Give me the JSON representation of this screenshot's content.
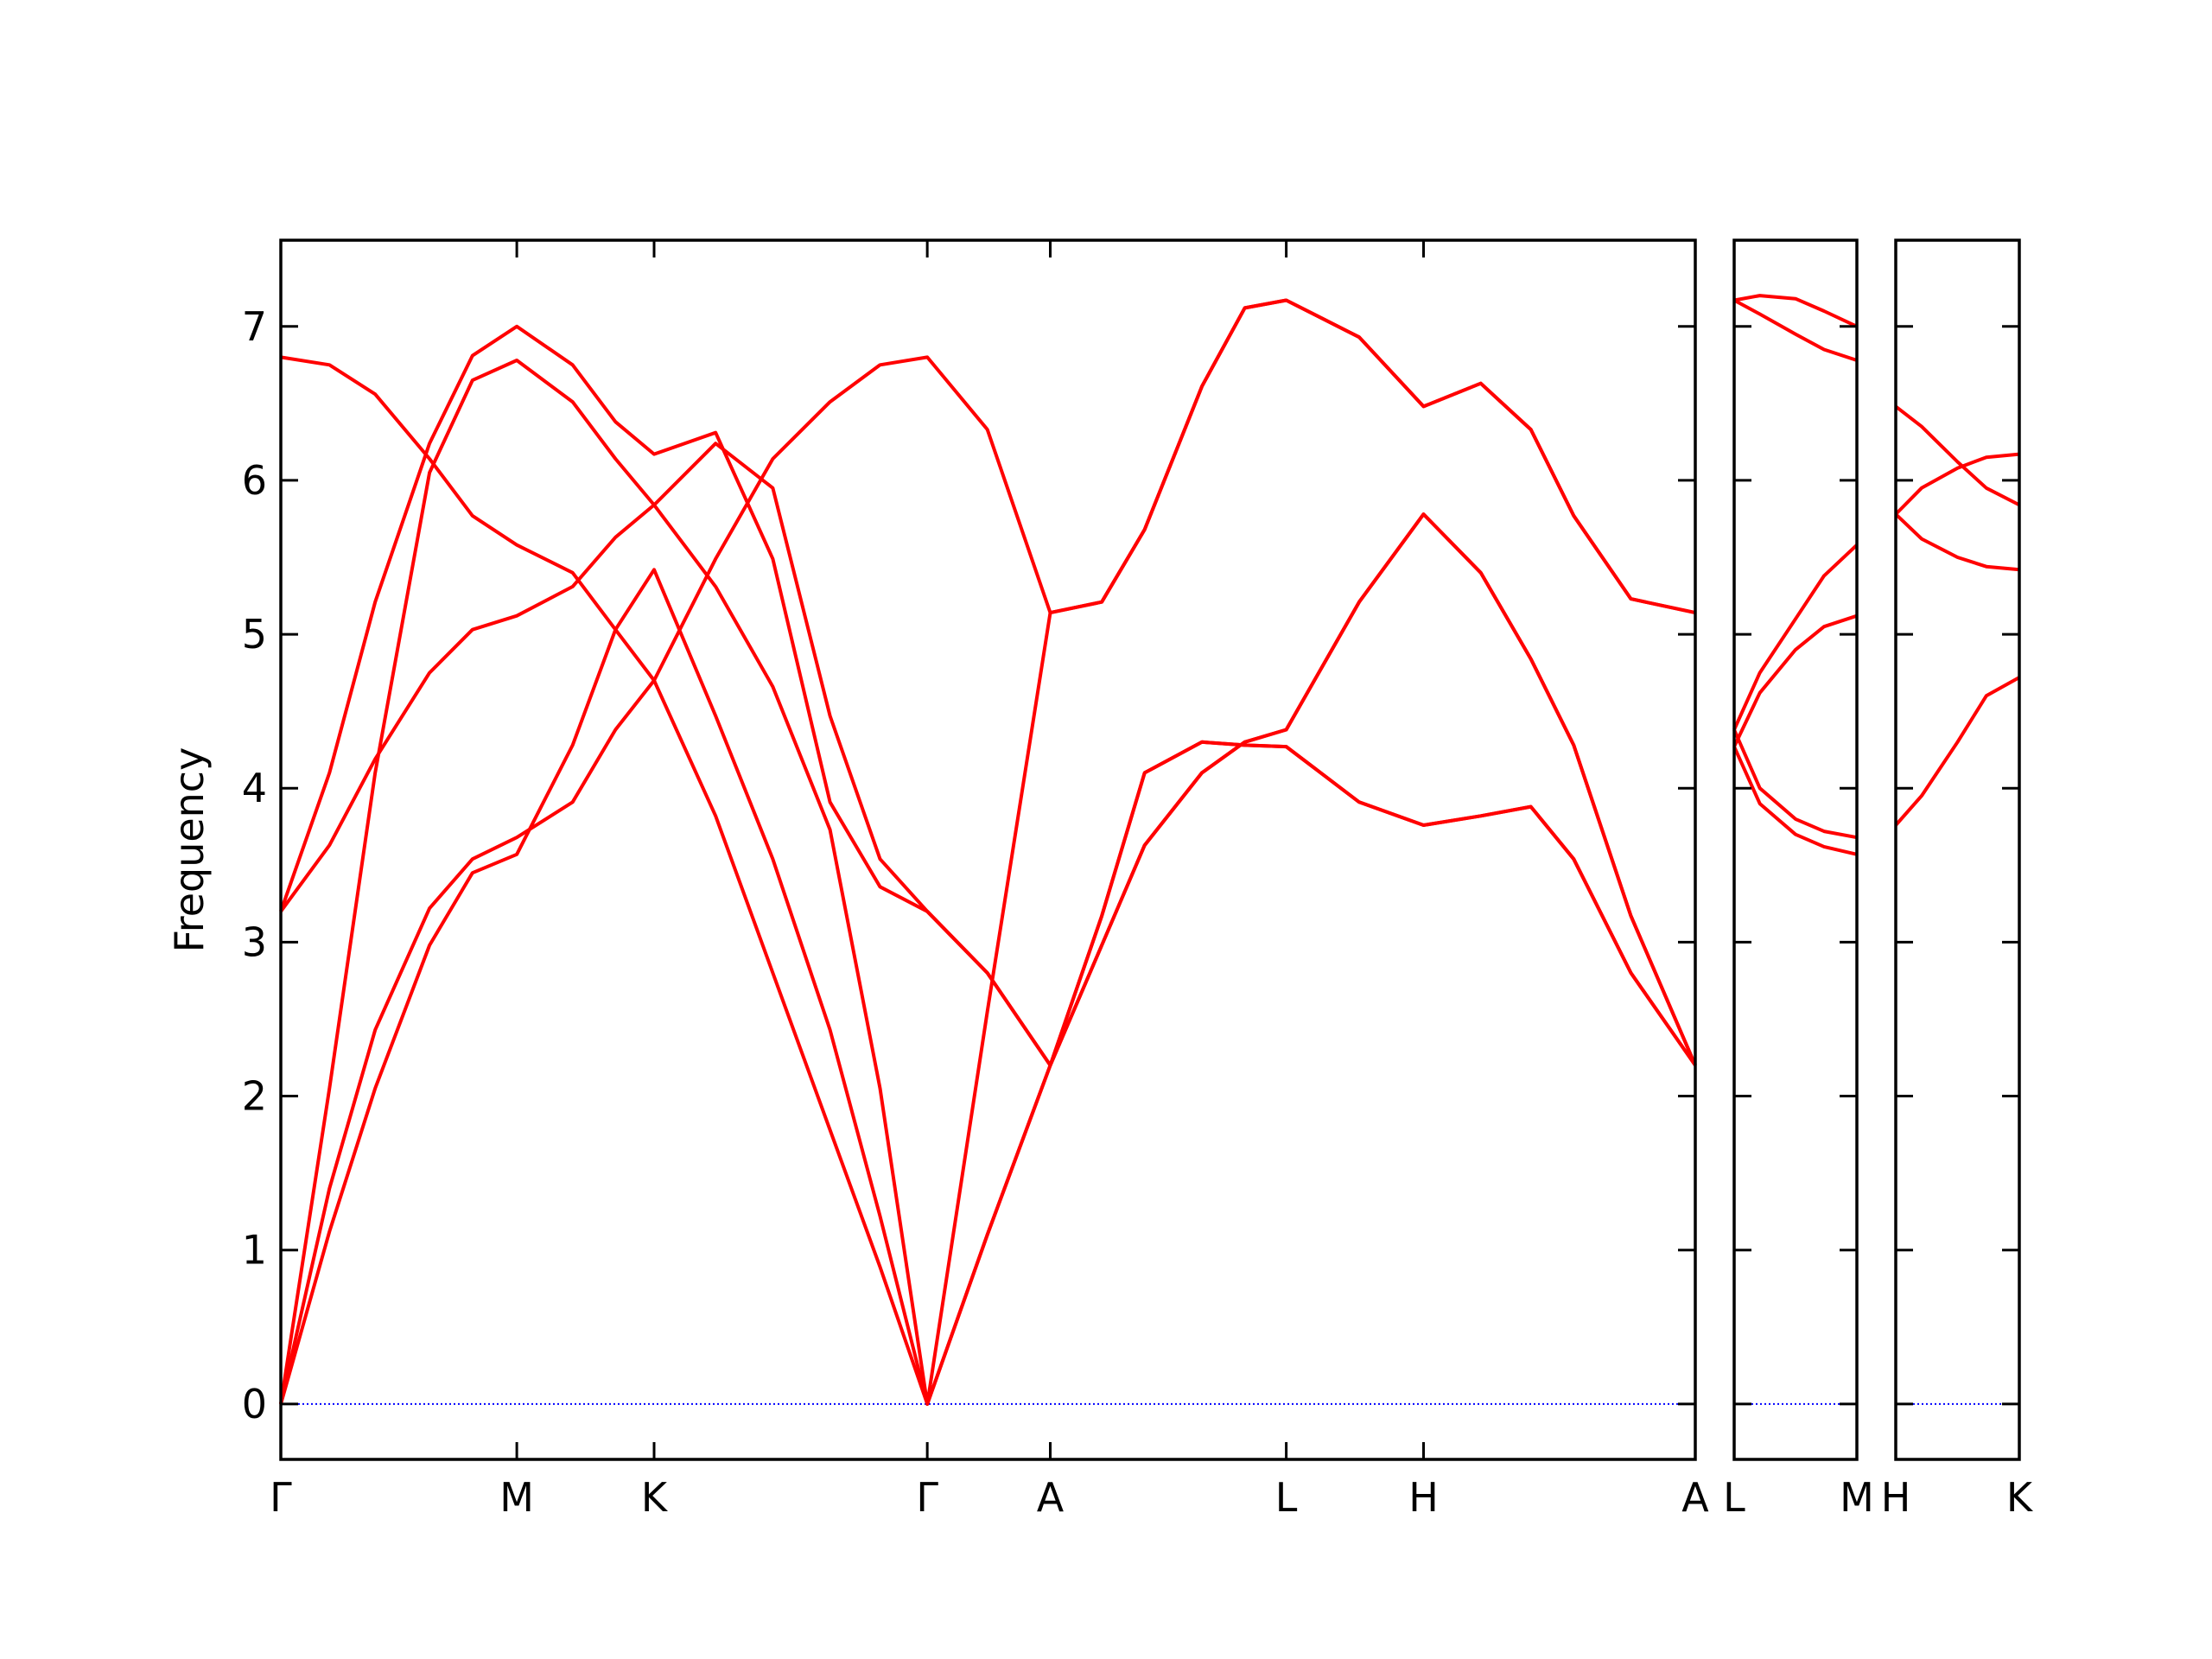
{
  "chart_data": [
    {
      "type": "line",
      "ylabel": "Frequency",
      "color": "#ff0000",
      "xlim": [
        0,
        0.989
      ],
      "ylim": [
        -0.36,
        7.56
      ],
      "yticks": [
        0,
        1,
        2,
        3,
        4,
        5,
        6,
        7
      ],
      "ytick_labels": true,
      "xticks": [
        {
          "value": 0,
          "label": "Γ"
        },
        {
          "value": 0.165,
          "label": "M"
        },
        {
          "value": 0.261,
          "label": "K"
        },
        {
          "value": 0.452,
          "label": "Γ"
        },
        {
          "value": 0.538,
          "label": "A"
        },
        {
          "value": 0.703,
          "label": "L"
        },
        {
          "value": 0.799,
          "label": "H"
        },
        {
          "value": 0.989,
          "label": "A"
        }
      ],
      "hline": {
        "value": 0,
        "color": "#0000ff",
        "style": "dotted"
      },
      "x": [
        0,
        0.034,
        0.066,
        0.104,
        0.134,
        0.165,
        0.204,
        0.234,
        0.261,
        0.304,
        0.344,
        0.384,
        0.419,
        0.452,
        0.494,
        0.538,
        0.574,
        0.604,
        0.644,
        0.674,
        0.703,
        0.754,
        0.799,
        0.839,
        0.874,
        0.904,
        0.944,
        0.989
      ],
      "series": [
        {
          "values": [
            0,
            1.12,
            2.05,
            2.98,
            3.45,
            3.57,
            4.28,
            5.03,
            5.42,
            4.47,
            3.54,
            2.43,
            1.22,
            0,
            1.1,
            2.2,
            3.17,
            4.1,
            4.3,
            4.28,
            4.27,
            3.91,
            3.76,
            3.82,
            3.88,
            3.54,
            2.8,
            2.2
          ]
        },
        {
          "values": [
            0,
            1.4,
            2.43,
            3.22,
            3.54,
            3.68,
            3.91,
            4.38,
            4.7,
            5.49,
            6.14,
            6.51,
            6.75,
            6.8,
            6.33,
            5.14,
            5.21,
            5.68,
            6.61,
            7.12,
            7.17,
            6.93,
            6.48,
            6.63,
            6.33,
            5.77,
            5.23,
            5.14
          ]
        },
        {
          "values": [
            0,
            2.05,
            4.1,
            6.05,
            6.65,
            6.78,
            6.51,
            6.14,
            5.84,
            5.31,
            4.66,
            3.73,
            2.05,
            0,
            2.55,
            5.14,
            5.21,
            5.68,
            6.61,
            7.12,
            7.17,
            6.93,
            6.48,
            6.63,
            6.33,
            5.77,
            5.23,
            5.14
          ]
        },
        {
          "values": [
            3.2,
            4.1,
            5.21,
            6.24,
            6.81,
            7.0,
            6.75,
            6.38,
            6.17,
            6.31,
            5.49,
            3.91,
            3.36,
            3.2,
            2.8,
            2.2,
            2.98,
            3.63,
            4.1,
            4.3,
            4.38,
            5.21,
            5.78,
            5.4,
            4.84,
            4.28,
            3.17,
            2.2
          ]
        },
        {
          "values": [
            3.2,
            3.63,
            4.19,
            4.75,
            5.03,
            5.12,
            5.31,
            5.63,
            5.84,
            6.24,
            5.95,
            4.47,
            3.54,
            3.2,
            2.8,
            2.2,
            2.98,
            3.63,
            4.1,
            4.3,
            4.38,
            5.21,
            5.78,
            5.4,
            4.84,
            4.28,
            3.17,
            2.2
          ]
        },
        {
          "values": [
            6.8,
            6.75,
            6.56,
            6.14,
            5.77,
            5.58,
            5.4,
            5.03,
            4.7,
            3.82,
            2.8,
            1.78,
            0.89,
            0,
            1.1,
            2.2,
            3.17,
            4.1,
            4.3,
            4.28,
            4.27,
            3.91,
            3.76,
            3.82,
            3.88,
            3.54,
            2.8,
            2.2
          ]
        }
      ]
    },
    {
      "type": "line",
      "color": "#ff0000",
      "xlim": [
        0,
        0.086
      ],
      "ylim": [
        -0.36,
        7.56
      ],
      "yticks": [
        0,
        1,
        2,
        3,
        4,
        5,
        6,
        7
      ],
      "ytick_labels": false,
      "xticks": [
        {
          "value": 0,
          "label": "L"
        },
        {
          "value": 0.086,
          "label": "M"
        }
      ],
      "hline": {
        "value": 0,
        "color": "#0000ff",
        "style": "dotted"
      },
      "x": [
        0,
        0.018,
        0.043,
        0.063,
        0.086
      ],
      "series": [
        {
          "values": [
            7.17,
            7.2,
            7.18,
            7.1,
            7.0
          ]
        },
        {
          "values": [
            7.17,
            7.08,
            6.95,
            6.85,
            6.78
          ]
        },
        {
          "values": [
            4.38,
            4.75,
            5.1,
            5.38,
            5.58
          ]
        },
        {
          "values": [
            4.27,
            4.62,
            4.9,
            5.05,
            5.12
          ]
        },
        {
          "values": [
            4.38,
            4.0,
            3.8,
            3.72,
            3.68
          ]
        },
        {
          "values": [
            4.27,
            3.9,
            3.7,
            3.62,
            3.57
          ]
        }
      ]
    },
    {
      "type": "line",
      "color": "#ff0000",
      "xlim": [
        0,
        0.086
      ],
      "ylim": [
        -0.36,
        7.56
      ],
      "yticks": [
        0,
        1,
        2,
        3,
        4,
        5,
        6,
        7
      ],
      "ytick_labels": false,
      "xticks": [
        {
          "value": 0,
          "label": "H"
        },
        {
          "value": 0.086,
          "label": "K"
        }
      ],
      "hline": {
        "value": 0,
        "color": "#0000ff",
        "style": "dotted"
      },
      "x": [
        0,
        0.018,
        0.043,
        0.063,
        0.086
      ],
      "series": [
        {
          "values": [
            6.48,
            6.35,
            6.12,
            5.95,
            5.84
          ]
        },
        {
          "values": [
            5.78,
            5.95,
            6.08,
            6.15,
            6.17
          ]
        },
        {
          "values": [
            5.78,
            5.62,
            5.5,
            5.44,
            5.42
          ]
        },
        {
          "values": [
            3.76,
            3.95,
            4.3,
            4.6,
            4.72
          ]
        }
      ]
    }
  ]
}
